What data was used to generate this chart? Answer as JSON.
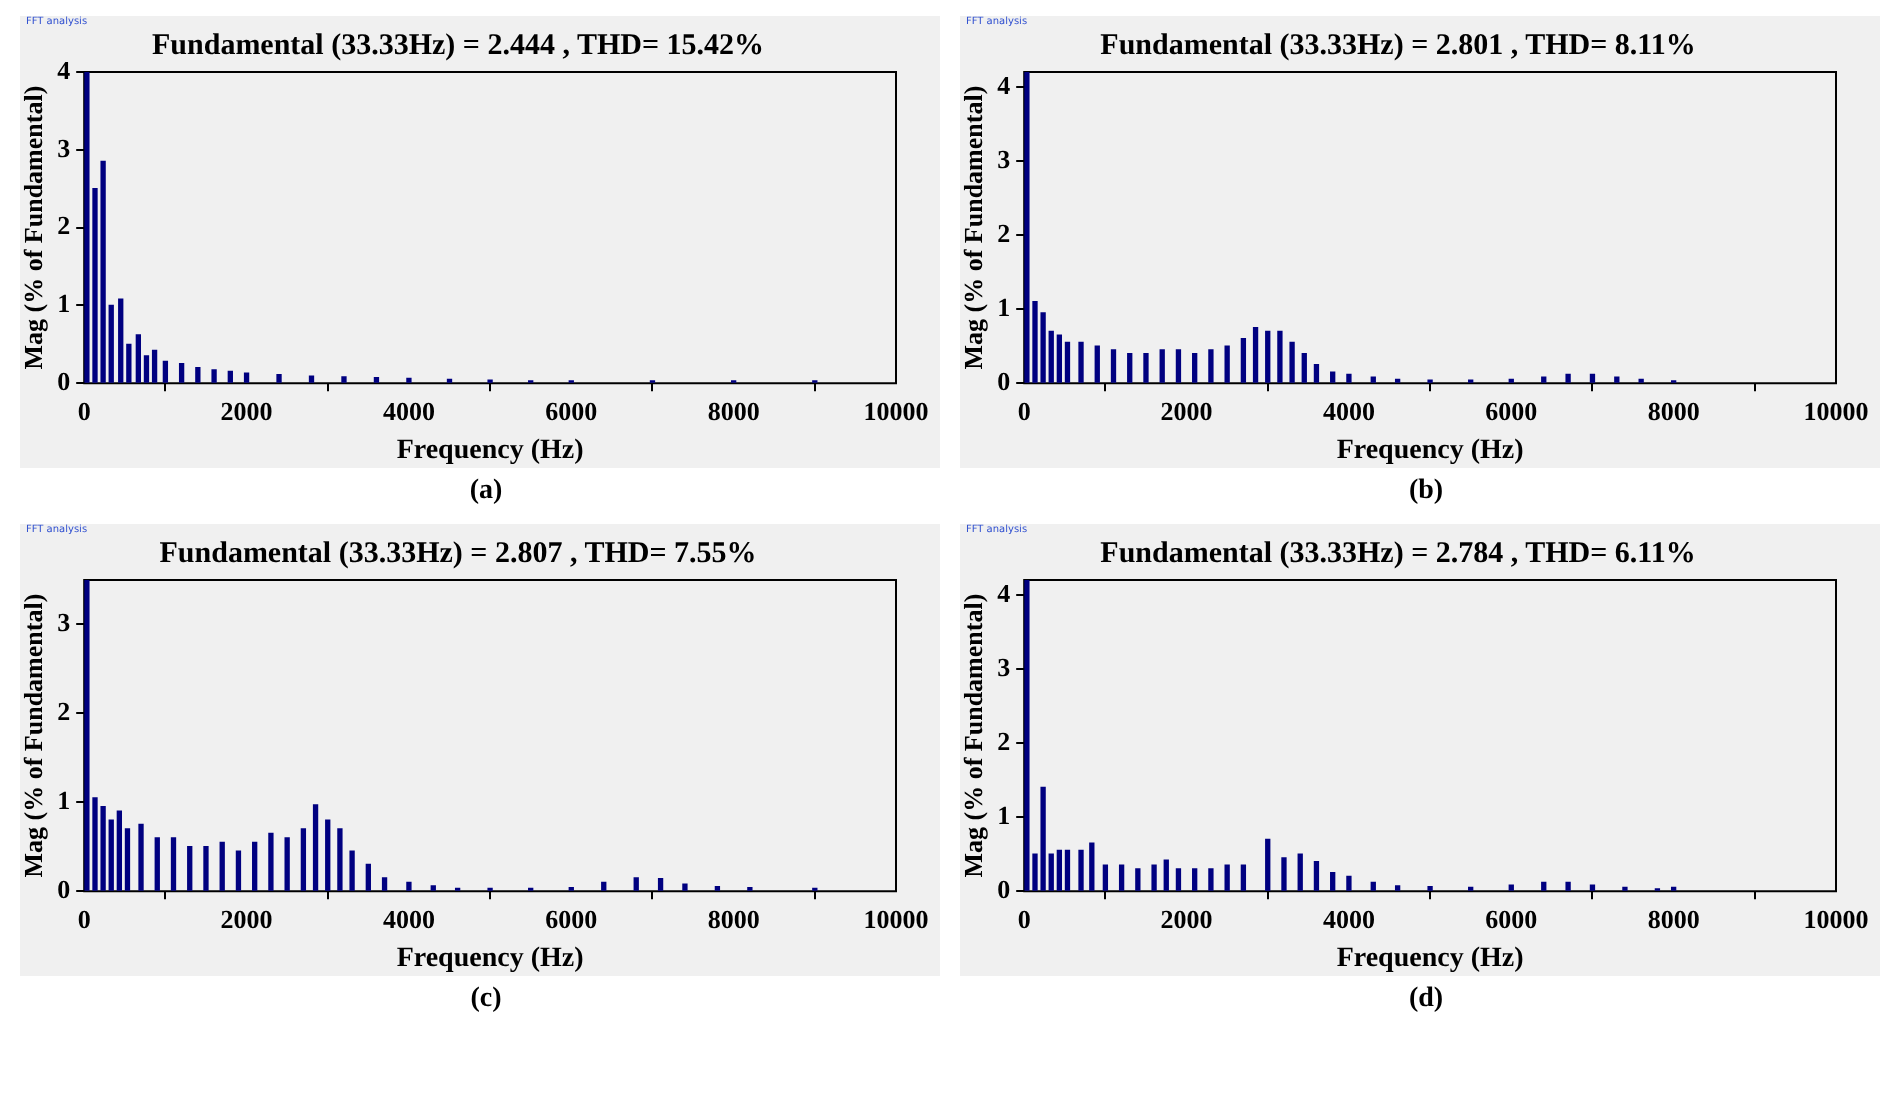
{
  "chart_data": [
    {
      "type": "bar",
      "title": "Fundamental (33.33Hz) = 2.444 , THD= 15.42%",
      "xlabel": "Frequency (Hz)",
      "ylabel": "Mag (% of Fundamental)",
      "color": "#000080",
      "x": [
        33,
        133,
        233,
        333,
        450,
        550,
        667,
        767,
        867,
        1000,
        1200,
        1400,
        1600,
        1800,
        2000,
        2400,
        2800,
        3200,
        3600,
        4000,
        4500,
        5000,
        5500,
        6000,
        7000,
        8000,
        9000
      ],
      "values": [
        4,
        2.5,
        2.85,
        1.0,
        1.08,
        0.5,
        0.62,
        0.35,
        0.42,
        0.28,
        0.25,
        0.2,
        0.17,
        0.15,
        0.13,
        0.11,
        0.09,
        0.08,
        0.07,
        0.06,
        0.05,
        0.04,
        0.03,
        0.03,
        0.03,
        0.03,
        0.03
      ],
      "xlim": [
        0,
        10000
      ],
      "xticks": [
        0,
        2000,
        4000,
        6000,
        8000,
        10000
      ],
      "ylim": [
        0,
        4
      ],
      "yticks": [
        0,
        1,
        2,
        3,
        4
      ],
      "annotations": [
        "FFT analysis",
        "(a)"
      ]
    },
    {
      "type": "bar",
      "title": "Fundamental (33.33Hz) = 2.801 , THD= 8.11%",
      "xlabel": "Frequency (Hz)",
      "ylabel": "Mag (% of Fundamental)",
      "color": "#000080",
      "x": [
        33,
        133,
        233,
        333,
        433,
        533,
        700,
        900,
        1100,
        1300,
        1500,
        1700,
        1900,
        2100,
        2300,
        2500,
        2700,
        2850,
        3000,
        3150,
        3300,
        3450,
        3600,
        3800,
        4000,
        4300,
        4600,
        5000,
        5500,
        6000,
        6400,
        6700,
        7000,
        7300,
        7600,
        8000
      ],
      "values": [
        4.2,
        1.1,
        0.95,
        0.7,
        0.65,
        0.55,
        0.55,
        0.5,
        0.45,
        0.4,
        0.4,
        0.45,
        0.45,
        0.4,
        0.45,
        0.5,
        0.6,
        0.75,
        0.7,
        0.7,
        0.55,
        0.4,
        0.25,
        0.15,
        0.12,
        0.08,
        0.05,
        0.04,
        0.04,
        0.05,
        0.08,
        0.12,
        0.12,
        0.08,
        0.05,
        0.03
      ],
      "xlim": [
        0,
        10000
      ],
      "xticks": [
        0,
        2000,
        4000,
        6000,
        8000,
        10000
      ],
      "ylim": [
        0,
        4.2
      ],
      "yticks": [
        0,
        1,
        2,
        3,
        4
      ],
      "annotations": [
        "FFT analysis",
        "(b)"
      ]
    },
    {
      "type": "bar",
      "title": "Fundamental (33.33Hz) = 2.807 , THD= 7.55%",
      "xlabel": "Frequency (Hz)",
      "ylabel": "Mag (% of Fundamental)",
      "color": "#000080",
      "x": [
        33,
        133,
        233,
        333,
        433,
        533,
        700,
        900,
        1100,
        1300,
        1500,
        1700,
        1900,
        2100,
        2300,
        2500,
        2700,
        2850,
        3000,
        3150,
        3300,
        3500,
        3700,
        4000,
        4300,
        4600,
        5000,
        5500,
        6000,
        6400,
        6800,
        7100,
        7400,
        7800,
        8200,
        9000
      ],
      "values": [
        3.5,
        1.05,
        0.95,
        0.8,
        0.9,
        0.7,
        0.75,
        0.6,
        0.6,
        0.5,
        0.5,
        0.55,
        0.45,
        0.55,
        0.65,
        0.6,
        0.7,
        0.97,
        0.8,
        0.7,
        0.45,
        0.3,
        0.15,
        0.1,
        0.06,
        0.03,
        0.03,
        0.03,
        0.04,
        0.1,
        0.15,
        0.14,
        0.08,
        0.05,
        0.04,
        0.03
      ],
      "xlim": [
        0,
        10000
      ],
      "xticks": [
        0,
        2000,
        4000,
        6000,
        8000,
        10000
      ],
      "ylim": [
        0,
        3.5
      ],
      "yticks": [
        0,
        1,
        2,
        3
      ],
      "annotations": [
        "FFT analysis",
        "(c)"
      ]
    },
    {
      "type": "bar",
      "title": "Fundamental (33.33Hz) = 2.784 , THD= 6.11%",
      "xlabel": "Frequency (Hz)",
      "ylabel": "Mag (% of Fundamental)",
      "color": "#000080",
      "x": [
        33,
        133,
        233,
        333,
        433,
        533,
        700,
        833,
        1000,
        1200,
        1400,
        1600,
        1750,
        1900,
        2100,
        2300,
        2500,
        2700,
        3000,
        3200,
        3400,
        3600,
        3800,
        4000,
        4300,
        4600,
        5000,
        5500,
        6000,
        6400,
        6700,
        7000,
        7400,
        7800,
        8000
      ],
      "values": [
        4.2,
        0.5,
        1.4,
        0.5,
        0.55,
        0.55,
        0.55,
        0.65,
        0.35,
        0.35,
        0.3,
        0.35,
        0.42,
        0.3,
        0.3,
        0.3,
        0.35,
        0.35,
        0.7,
        0.45,
        0.5,
        0.4,
        0.25,
        0.2,
        0.12,
        0.07,
        0.06,
        0.05,
        0.08,
        0.12,
        0.12,
        0.08,
        0.05,
        0.03,
        0.05
      ],
      "xlim": [
        0,
        10000
      ],
      "xticks": [
        0,
        2000,
        4000,
        6000,
        8000,
        10000
      ],
      "ylim": [
        0,
        4.2
      ],
      "yticks": [
        0,
        1,
        2,
        3,
        4
      ],
      "annotations": [
        "FFT analysis",
        "(d)"
      ]
    }
  ]
}
